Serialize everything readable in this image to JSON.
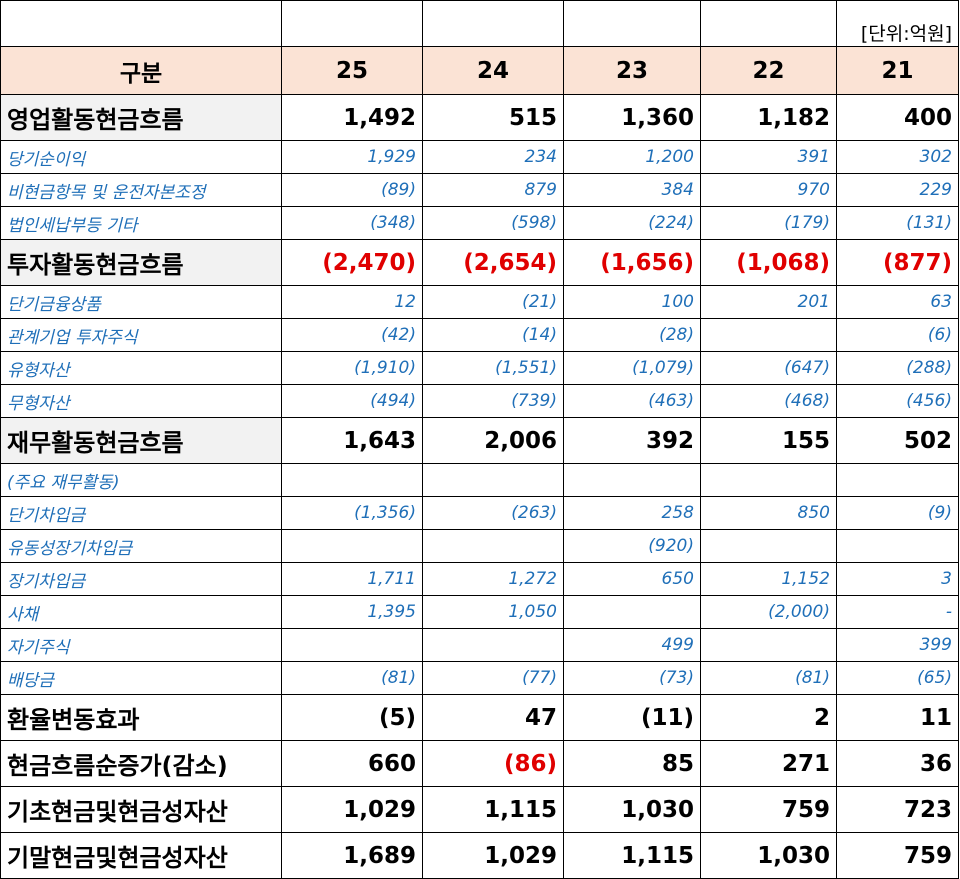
{
  "unit": "[단위:억원]",
  "header": {
    "label": "구분",
    "years": [
      "25",
      "24",
      "23",
      "22",
      "21"
    ]
  },
  "rows": [
    {
      "kind": "major",
      "shade": true,
      "label": "영업활동현금흐름",
      "values": [
        "1,492",
        "515",
        "1,360",
        "1,182",
        "400"
      ],
      "red": [
        false,
        false,
        false,
        false,
        false
      ]
    },
    {
      "kind": "minor",
      "label": "당기순이익",
      "values": [
        "1,929",
        "234",
        "1,200",
        "391",
        "302"
      ]
    },
    {
      "kind": "minor",
      "label": "비현금항목 및 운전자본조정",
      "values": [
        "(89)",
        "879",
        "384",
        "970",
        "229"
      ]
    },
    {
      "kind": "minor",
      "label": "법인세납부등 기타",
      "values": [
        "(348)",
        "(598)",
        "(224)",
        "(179)",
        "(131)"
      ]
    },
    {
      "kind": "major",
      "shade": true,
      "label": "투자활동현금흐름",
      "values": [
        "(2,470)",
        "(2,654)",
        "(1,656)",
        "(1,068)",
        "(877)"
      ],
      "red": [
        true,
        true,
        true,
        true,
        true
      ]
    },
    {
      "kind": "minor",
      "label": "단기금융상품",
      "values": [
        "12",
        "(21)",
        "100",
        "201",
        "63"
      ]
    },
    {
      "kind": "minor",
      "label": "관계기업 투자주식",
      "values": [
        "(42)",
        "(14)",
        "(28)",
        "",
        "(6)"
      ]
    },
    {
      "kind": "minor",
      "label": "유형자산",
      "values": [
        "(1,910)",
        "(1,551)",
        "(1,079)",
        "(647)",
        "(288)"
      ]
    },
    {
      "kind": "minor",
      "label": "무형자산",
      "values": [
        "(494)",
        "(739)",
        "(463)",
        "(468)",
        "(456)"
      ]
    },
    {
      "kind": "major",
      "shade": true,
      "label": "재무활동현금흐름",
      "values": [
        "1,643",
        "2,006",
        "392",
        "155",
        "502"
      ],
      "red": [
        false,
        false,
        false,
        false,
        false
      ]
    },
    {
      "kind": "minor",
      "label": "(주요 재무활동)",
      "values": [
        "",
        "",
        "",
        "",
        ""
      ]
    },
    {
      "kind": "minor",
      "label": "단기차입금",
      "values": [
        "(1,356)",
        "(263)",
        "258",
        "850",
        "(9)"
      ]
    },
    {
      "kind": "minor",
      "label": "유동성장기차입금",
      "values": [
        "",
        "",
        "(920)",
        "",
        ""
      ]
    },
    {
      "kind": "minor",
      "label": "장기차입금",
      "values": [
        "1,711",
        "1,272",
        "650",
        "1,152",
        "3"
      ]
    },
    {
      "kind": "minor",
      "label": "사채",
      "values": [
        "1,395",
        "1,050",
        "",
        "(2,000)",
        "-"
      ]
    },
    {
      "kind": "minor",
      "label": "자기주식",
      "values": [
        "",
        "",
        "499",
        "",
        "399"
      ]
    },
    {
      "kind": "minor",
      "label": "배당금",
      "values": [
        "(81)",
        "(77)",
        "(73)",
        "(81)",
        "(65)"
      ]
    },
    {
      "kind": "major",
      "shade": false,
      "label": "환율변동효과",
      "values": [
        "(5)",
        "47",
        "(11)",
        "2",
        "11"
      ],
      "red": [
        false,
        false,
        false,
        false,
        false
      ]
    },
    {
      "kind": "major",
      "shade": false,
      "label": "현금흐름순증가(감소)",
      "values": [
        "660",
        "(86)",
        "85",
        "271",
        "36"
      ],
      "red": [
        false,
        true,
        false,
        false,
        false
      ]
    },
    {
      "kind": "major",
      "shade": false,
      "label": "기초현금및현금성자산",
      "values": [
        "1,029",
        "1,115",
        "1,030",
        "759",
        "723"
      ],
      "red": [
        false,
        false,
        false,
        false,
        false
      ]
    },
    {
      "kind": "major",
      "shade": false,
      "label": "기말현금및현금성자산",
      "values": [
        "1,689",
        "1,029",
        "1,115",
        "1,030",
        "759"
      ],
      "red": [
        false,
        false,
        false,
        false,
        false
      ]
    }
  ],
  "colors": {
    "header_bg": "#fbe3d5",
    "major_label_bg": "#f2f2f2",
    "minor_text": "#1f6fb8",
    "negative_red": "#e00000"
  }
}
